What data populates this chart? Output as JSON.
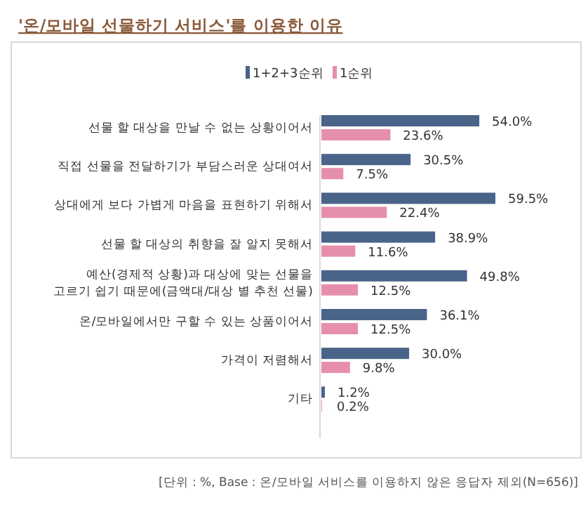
{
  "chart_data": {
    "type": "bar",
    "orientation": "horizontal",
    "title": "'온/모바일 선물하기 서비스'를 이용한 이유",
    "categories": [
      "선물 할 대상을 만날 수 없는 상황이어서",
      "직접 선물을 전달하기가 부담스러운 상대여서",
      "상대에게 보다 가볍게 마음을 표현하기 위해서",
      "선물 할 대상의 취향을 잘 알지 못해서",
      "예산(경제적 상황)과 대상에 맞는 선물을\n고르기 쉽기 때문에(금액대/대상 별 추천 선물)",
      "온/모바일에서만 구할 수 있는 상품이어서",
      "가격이 저렴해서",
      "기타"
    ],
    "series": [
      {
        "name": "1+2+3순위",
        "color": "#4a6389",
        "values": [
          54.0,
          30.5,
          59.5,
          38.9,
          49.8,
          36.1,
          30.0,
          1.2
        ],
        "value_labels": [
          "54.0%",
          "30.5%",
          "59.5%",
          "38.9%",
          "49.8%",
          "36.1%",
          "30.0%",
          "1.2%"
        ]
      },
      {
        "name": "1순위",
        "color": "#e58fac",
        "values": [
          23.6,
          7.5,
          22.4,
          11.6,
          12.5,
          12.5,
          9.8,
          0.2
        ],
        "value_labels": [
          "23.6%",
          "7.5%",
          "22.4%",
          "11.6%",
          "12.5%",
          "12.5%",
          "9.8%",
          "0.2%"
        ]
      }
    ],
    "legend": "top",
    "annotations": [
      "[단위 : %, Base : 온/모바일 서비스를 이용하지 않은 응답자 제외(N=656)]"
    ]
  }
}
